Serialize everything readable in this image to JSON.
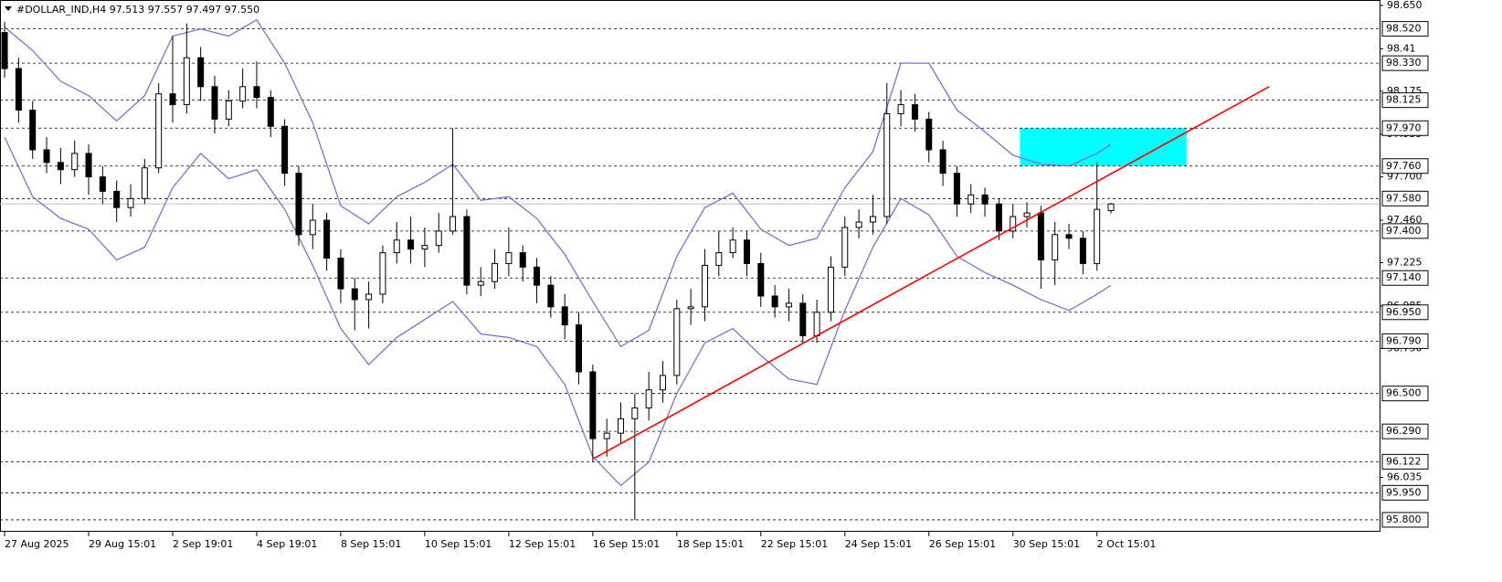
{
  "chart_data": {
    "type": "candlestick",
    "title": "#DOLLAR_IND,H4  97.513 97.557 97.497 97.550",
    "categories": [
      "27 Aug 2025",
      null,
      null,
      null,
      null,
      null,
      "29 Aug 15:01",
      null,
      null,
      null,
      null,
      null,
      "2 Sep 19:01",
      null,
      null,
      null,
      null,
      null,
      "4 Sep 19:01",
      null,
      null,
      null,
      null,
      null,
      "8 Sep 15:01",
      null,
      null,
      null,
      null,
      null,
      "10 Sep 15:01",
      null,
      null,
      null,
      null,
      null,
      "12 Sep 15:01",
      null,
      null,
      null,
      null,
      null,
      "16 Sep 15:01",
      null,
      null,
      null,
      null,
      null,
      "18 Sep 15:01",
      null,
      null,
      null,
      null,
      null,
      "22 Sep 15:01",
      null,
      null,
      null,
      null,
      null,
      "24 Sep 15:01",
      null,
      null,
      null,
      null,
      null,
      "26 Sep 15:01",
      null,
      null,
      null,
      null,
      null,
      "30 Sep 15:01",
      null,
      null,
      null,
      null,
      null,
      "2 Oct 15:01",
      null
    ],
    "open": [
      98.5,
      98.3,
      98.07,
      97.85,
      97.78,
      97.74,
      97.83,
      97.7,
      97.62,
      97.53,
      97.58,
      97.75,
      98.16,
      98.1,
      98.36,
      98.2,
      98.02,
      98.12,
      98.2,
      98.14,
      97.98,
      97.72,
      97.38,
      97.46,
      97.25,
      97.08,
      97.02,
      97.05,
      97.28,
      97.35,
      97.3,
      97.32,
      97.4,
      97.48,
      97.1,
      97.12,
      97.22,
      97.28,
      97.2,
      97.1,
      96.98,
      96.88,
      96.62,
      96.25,
      96.28,
      96.36,
      96.42,
      96.52,
      96.6,
      96.97,
      96.98,
      97.21,
      97.28,
      97.35,
      97.22,
      97.04,
      96.98,
      97.0,
      96.82,
      96.95,
      97.2,
      97.42,
      97.45,
      97.48,
      98.05,
      98.1,
      98.02,
      97.85,
      97.72,
      97.55,
      97.6,
      97.55,
      97.4,
      97.48,
      97.5,
      97.24,
      97.38,
      97.36,
      97.22,
      97.513
    ],
    "high": [
      98.56,
      98.36,
      98.12,
      97.92,
      97.86,
      97.9,
      97.88,
      97.76,
      97.68,
      97.66,
      97.8,
      98.22,
      98.48,
      98.55,
      98.42,
      98.26,
      98.18,
      98.3,
      98.34,
      98.18,
      98.02,
      97.76,
      97.55,
      97.5,
      97.3,
      97.14,
      97.12,
      97.32,
      97.45,
      97.48,
      97.42,
      97.5,
      97.97,
      97.52,
      97.2,
      97.3,
      97.42,
      97.32,
      97.25,
      97.15,
      97.05,
      96.95,
      96.66,
      96.36,
      96.45,
      96.5,
      96.62,
      96.68,
      97.02,
      97.08,
      97.3,
      97.4,
      97.42,
      97.4,
      97.28,
      97.1,
      97.08,
      97.05,
      97.02,
      97.26,
      97.48,
      97.52,
      97.6,
      98.22,
      98.18,
      98.16,
      98.06,
      97.9,
      97.76,
      97.66,
      97.64,
      97.58,
      97.55,
      97.56,
      97.54,
      97.45,
      97.44,
      97.4,
      97.78,
      97.557
    ],
    "low": [
      98.25,
      98.0,
      97.8,
      97.72,
      97.66,
      97.7,
      97.6,
      97.55,
      97.45,
      97.48,
      97.55,
      97.72,
      98.0,
      98.05,
      98.12,
      97.94,
      97.98,
      98.08,
      98.08,
      97.92,
      97.65,
      97.32,
      97.3,
      97.18,
      97.0,
      96.85,
      96.86,
      97.0,
      97.22,
      97.22,
      97.2,
      97.28,
      97.38,
      97.05,
      97.04,
      97.08,
      97.15,
      97.12,
      97.0,
      96.92,
      96.8,
      96.55,
      96.12,
      96.15,
      96.22,
      95.8,
      96.35,
      96.45,
      96.55,
      96.88,
      96.9,
      97.15,
      97.25,
      97.15,
      96.98,
      96.92,
      96.9,
      96.78,
      96.78,
      96.9,
      97.15,
      97.36,
      97.38,
      97.44,
      97.98,
      97.95,
      97.78,
      97.65,
      97.48,
      97.5,
      97.48,
      97.35,
      97.36,
      97.42,
      97.08,
      97.1,
      97.3,
      97.16,
      97.18,
      97.497
    ],
    "close": [
      98.3,
      98.07,
      97.85,
      97.78,
      97.74,
      97.83,
      97.7,
      97.62,
      97.53,
      97.58,
      97.75,
      98.16,
      98.1,
      98.36,
      98.2,
      98.02,
      98.12,
      98.2,
      98.14,
      97.98,
      97.72,
      97.38,
      97.46,
      97.25,
      97.08,
      97.02,
      97.05,
      97.28,
      97.35,
      97.3,
      97.32,
      97.4,
      97.48,
      97.1,
      97.12,
      97.22,
      97.28,
      97.2,
      97.1,
      96.98,
      96.88,
      96.62,
      96.25,
      96.28,
      96.36,
      96.42,
      96.52,
      96.6,
      96.97,
      96.98,
      97.21,
      97.28,
      97.35,
      97.22,
      97.04,
      96.98,
      97.0,
      96.82,
      96.95,
      97.2,
      97.42,
      97.45,
      97.48,
      98.05,
      98.1,
      98.02,
      97.85,
      97.72,
      97.55,
      97.6,
      97.55,
      97.4,
      97.48,
      97.5,
      97.24,
      97.38,
      97.36,
      97.22,
      97.52,
      97.55
    ],
    "up_color": "#ffffff",
    "down_color": "#000000",
    "bands": [
      {
        "color": "#7b6fd8",
        "x": [
          0,
          2,
          4,
          6,
          8,
          10,
          12,
          14,
          16,
          18,
          20,
          22,
          24,
          26,
          28,
          30,
          32,
          34,
          36,
          38,
          40,
          42,
          44,
          46,
          48,
          50,
          52,
          54,
          56,
          58,
          60,
          62,
          64,
          66,
          68,
          70,
          72,
          74,
          76,
          78,
          79
        ],
        "values": [
          98.53,
          98.4,
          98.23,
          98.15,
          98.01,
          98.15,
          98.48,
          98.52,
          98.48,
          98.57,
          98.33,
          98.0,
          97.54,
          97.44,
          97.59,
          97.67,
          97.77,
          97.57,
          97.59,
          97.47,
          97.27,
          97.01,
          96.76,
          96.85,
          97.26,
          97.53,
          97.61,
          97.41,
          97.32,
          97.36,
          97.64,
          97.84,
          98.33,
          98.33,
          98.07,
          97.95,
          97.82,
          97.77,
          97.76,
          97.83,
          97.88
        ]
      },
      {
        "color": "#7b6fd8",
        "x": [
          0,
          2,
          4,
          6,
          8,
          10,
          12,
          14,
          16,
          18,
          20,
          22,
          24,
          26,
          28,
          30,
          32,
          34,
          36,
          38,
          40,
          42,
          44,
          46,
          48,
          50,
          52,
          54,
          56,
          58,
          60,
          62,
          64,
          66,
          68,
          70,
          72,
          74,
          76,
          78,
          79
        ],
        "values": [
          97.92,
          97.59,
          97.47,
          97.41,
          97.24,
          97.31,
          97.64,
          97.83,
          97.69,
          97.74,
          97.52,
          97.21,
          96.86,
          96.66,
          96.81,
          96.91,
          97.01,
          96.83,
          96.81,
          96.76,
          96.55,
          96.15,
          95.99,
          96.12,
          96.5,
          96.78,
          96.86,
          96.71,
          96.58,
          96.55,
          96.96,
          97.31,
          97.58,
          97.49,
          97.26,
          97.17,
          97.1,
          97.02,
          96.96,
          97.05,
          97.1
        ]
      }
    ],
    "trendline": {
      "color": "#ff0000",
      "x": [
        42.07,
        90.3
      ],
      "y": [
        96.14,
        98.2
      ]
    },
    "zone": {
      "color": "#00ffff",
      "x": [
        72.5,
        84.4
      ],
      "y": [
        97.76,
        97.97
      ]
    },
    "price_line": {
      "value": 97.55,
      "color": "#c0c0c0"
    },
    "xlim": [
      -0.33,
      98.18
    ],
    "ylim": [
      95.734,
      98.68
    ],
    "yticks": [
      {
        "value": 98.65,
        "label": "98.650"
      },
      98.41,
      98.175,
      97.935,
      {
        "value": 97.7,
        "label": "97.700"
      },
      {
        "value": 97.46,
        "label": "97.460"
      },
      97.225,
      96.985,
      {
        "value": 96.75,
        "label": "96.750"
      },
      96.035
    ],
    "levels": [
      {
        "value": 98.52,
        "label": "98.520"
      },
      {
        "value": 98.33,
        "label": "98.330"
      },
      98.125,
      {
        "value": 97.97,
        "label": "97.970"
      },
      {
        "value": 97.76,
        "label": "97.760"
      },
      {
        "value": 97.58,
        "label": "97.580"
      },
      {
        "value": 97.4,
        "label": "97.400"
      },
      {
        "value": 97.14,
        "label": "97.140"
      },
      {
        "value": 96.95,
        "label": "96.950"
      },
      {
        "value": 96.79,
        "label": "96.790"
      },
      {
        "value": 96.5,
        "label": "96.500"
      },
      {
        "value": 96.29,
        "label": "96.290"
      },
      96.122,
      {
        "value": 95.95,
        "label": "95.950"
      },
      {
        "value": 95.8,
        "label": "95.800"
      }
    ]
  }
}
